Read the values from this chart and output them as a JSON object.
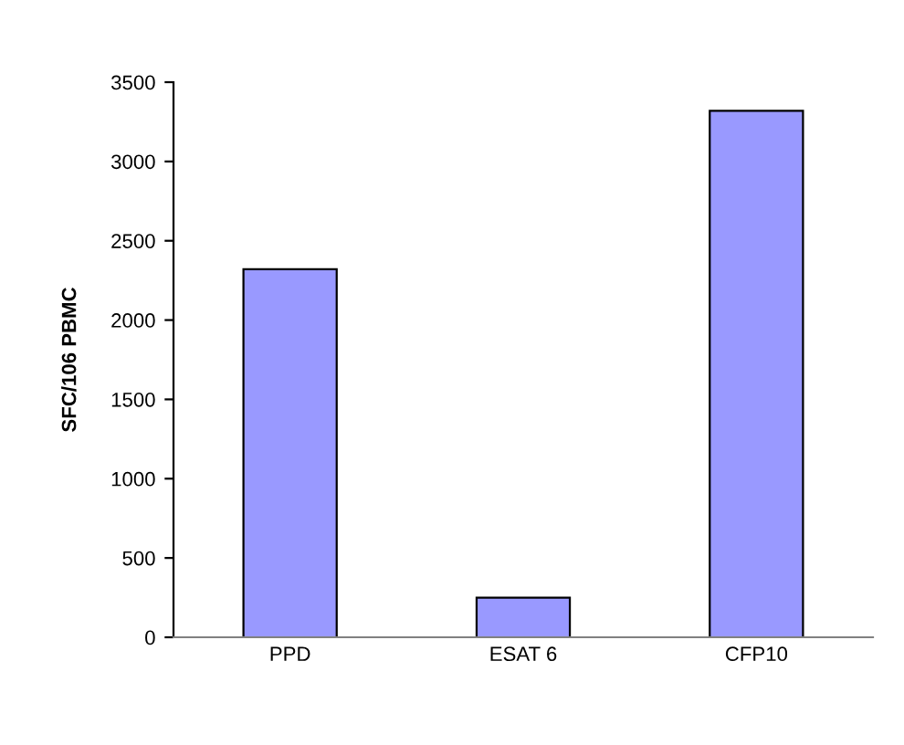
{
  "chart_data": {
    "type": "bar",
    "ylabel": "SFC/106 PBMC",
    "categories": [
      "PPD",
      "ESAT 6",
      "CFP10"
    ],
    "values": [
      2320,
      250,
      3320
    ],
    "color": "#9999ff",
    "ylim": [
      0,
      3500
    ],
    "yticks": [
      0,
      500,
      1000,
      1500,
      2000,
      2500,
      3000,
      3500
    ],
    "grid": false
  }
}
